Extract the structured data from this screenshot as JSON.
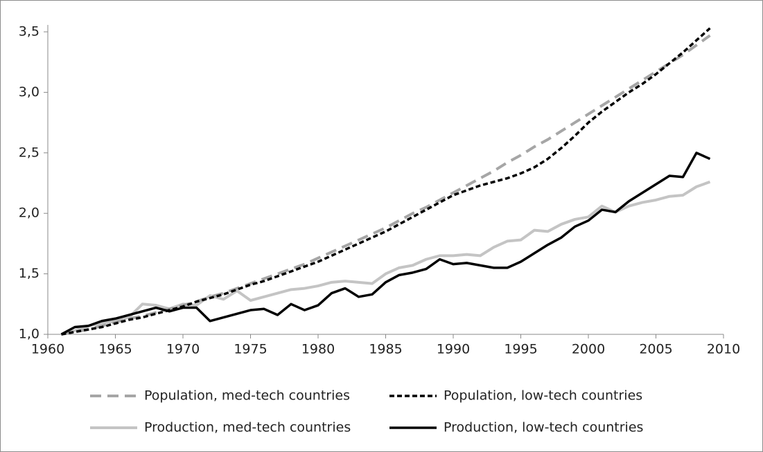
{
  "chart_data": {
    "type": "line",
    "x": [
      1961,
      1962,
      1963,
      1964,
      1965,
      1966,
      1967,
      1968,
      1969,
      1970,
      1971,
      1972,
      1973,
      1974,
      1975,
      1976,
      1977,
      1978,
      1979,
      1980,
      1981,
      1982,
      1983,
      1984,
      1985,
      1986,
      1987,
      1988,
      1989,
      1990,
      1991,
      1992,
      1993,
      1994,
      1995,
      1996,
      1997,
      1998,
      1999,
      2000,
      2001,
      2002,
      2003,
      2004,
      2005,
      2006,
      2007,
      2008,
      2009
    ],
    "series": [
      {
        "name": "Population, med-tech countries",
        "color": "#a6a6a6",
        "dash": "dashed",
        "values": [
          1.0,
          1.02,
          1.04,
          1.07,
          1.1,
          1.13,
          1.15,
          1.18,
          1.21,
          1.24,
          1.27,
          1.31,
          1.34,
          1.38,
          1.42,
          1.46,
          1.5,
          1.54,
          1.58,
          1.63,
          1.68,
          1.73,
          1.78,
          1.83,
          1.88,
          1.94,
          2.0,
          2.05,
          2.11,
          2.17,
          2.23,
          2.29,
          2.35,
          2.42,
          2.48,
          2.55,
          2.61,
          2.68,
          2.75,
          2.82,
          2.89,
          2.96,
          3.03,
          3.1,
          3.17,
          3.24,
          3.31,
          3.39,
          3.47
        ]
      },
      {
        "name": "Population, low-tech countries",
        "color": "#000000",
        "dash": "dotted",
        "values": [
          1.0,
          1.02,
          1.04,
          1.06,
          1.09,
          1.12,
          1.14,
          1.17,
          1.2,
          1.23,
          1.27,
          1.3,
          1.33,
          1.37,
          1.41,
          1.44,
          1.48,
          1.52,
          1.56,
          1.6,
          1.65,
          1.7,
          1.75,
          1.8,
          1.85,
          1.91,
          1.97,
          2.03,
          2.09,
          2.15,
          2.19,
          2.23,
          2.26,
          2.29,
          2.33,
          2.38,
          2.45,
          2.54,
          2.64,
          2.75,
          2.84,
          2.92,
          3.0,
          3.07,
          3.15,
          3.24,
          3.33,
          3.43,
          3.53
        ]
      },
      {
        "name": "Production, med-tech countries",
        "color": "#c4c4c4",
        "dash": "solid",
        "values": [
          1.0,
          1.03,
          1.07,
          1.09,
          1.11,
          1.14,
          1.25,
          1.24,
          1.21,
          1.25,
          1.24,
          1.32,
          1.29,
          1.36,
          1.28,
          1.31,
          1.34,
          1.37,
          1.38,
          1.4,
          1.43,
          1.44,
          1.43,
          1.42,
          1.5,
          1.55,
          1.57,
          1.62,
          1.65,
          1.65,
          1.66,
          1.65,
          1.72,
          1.77,
          1.78,
          1.86,
          1.85,
          1.91,
          1.95,
          1.97,
          2.06,
          2.01,
          2.06,
          2.09,
          2.11,
          2.14,
          2.15,
          2.22,
          2.26
        ]
      },
      {
        "name": "Production, low-tech countries",
        "color": "#000000",
        "dash": "solid",
        "values": [
          1.0,
          1.06,
          1.07,
          1.11,
          1.13,
          1.16,
          1.19,
          1.22,
          1.19,
          1.22,
          1.22,
          1.11,
          1.14,
          1.17,
          1.2,
          1.21,
          1.16,
          1.25,
          1.2,
          1.24,
          1.34,
          1.38,
          1.31,
          1.33,
          1.43,
          1.49,
          1.51,
          1.54,
          1.62,
          1.58,
          1.59,
          1.57,
          1.55,
          1.55,
          1.6,
          1.67,
          1.74,
          1.8,
          1.89,
          1.94,
          2.03,
          2.01,
          2.1,
          2.17,
          2.24,
          2.31,
          2.3,
          2.5,
          2.45
        ]
      }
    ],
    "xlim": [
      1960,
      2010
    ],
    "xticks": [
      1960,
      1965,
      1970,
      1975,
      1980,
      1985,
      1990,
      1995,
      2000,
      2005,
      2010
    ],
    "ylim": [
      1.0,
      3.5
    ],
    "yticks": [
      {
        "value": 1.0,
        "label": "1,0"
      },
      {
        "value": 1.5,
        "label": "1,5"
      },
      {
        "value": 2.0,
        "label": "2,0"
      },
      {
        "value": 2.5,
        "label": "2,5"
      },
      {
        "value": 3.0,
        "label": "3,0"
      },
      {
        "value": 3.5,
        "label": "3,5"
      }
    ],
    "legend": "bottom"
  }
}
